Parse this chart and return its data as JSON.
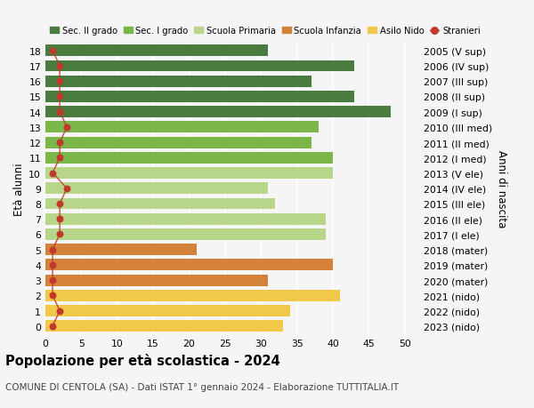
{
  "ages": [
    18,
    17,
    16,
    15,
    14,
    13,
    12,
    11,
    10,
    9,
    8,
    7,
    6,
    5,
    4,
    3,
    2,
    1,
    0
  ],
  "right_labels": [
    "2005 (V sup)",
    "2006 (IV sup)",
    "2007 (III sup)",
    "2008 (II sup)",
    "2009 (I sup)",
    "2010 (III med)",
    "2011 (II med)",
    "2012 (I med)",
    "2013 (V ele)",
    "2014 (IV ele)",
    "2015 (III ele)",
    "2016 (II ele)",
    "2017 (I ele)",
    "2018 (mater)",
    "2019 (mater)",
    "2020 (mater)",
    "2021 (nido)",
    "2022 (nido)",
    "2023 (nido)"
  ],
  "bar_values": [
    31,
    43,
    37,
    43,
    48,
    38,
    37,
    40,
    40,
    31,
    32,
    39,
    39,
    21,
    40,
    31,
    41,
    34,
    33
  ],
  "bar_colors": [
    "#4a7c3f",
    "#4a7c3f",
    "#4a7c3f",
    "#4a7c3f",
    "#4a7c3f",
    "#7ab648",
    "#7ab648",
    "#7ab648",
    "#b8d68a",
    "#b8d68a",
    "#b8d68a",
    "#b8d68a",
    "#b8d68a",
    "#d4813a",
    "#d4813a",
    "#d4813a",
    "#f0c84a",
    "#f0c84a",
    "#f0c84a"
  ],
  "stranieri_values": [
    1,
    2,
    2,
    2,
    2,
    3,
    2,
    2,
    1,
    3,
    2,
    2,
    2,
    1,
    1,
    1,
    1,
    2,
    1
  ],
  "stranieri_color": "#c0392b",
  "legend_items": [
    {
      "label": "Sec. II grado",
      "color": "#4a7c3f"
    },
    {
      "label": "Sec. I grado",
      "color": "#7ab648"
    },
    {
      "label": "Scuola Primaria",
      "color": "#b8d68a"
    },
    {
      "label": "Scuola Infanzia",
      "color": "#d4813a"
    },
    {
      "label": "Asilo Nido",
      "color": "#f0c84a"
    },
    {
      "label": "Stranieri",
      "color": "#c0392b"
    }
  ],
  "ylabel_left": "Età alunni",
  "ylabel_right": "Anni di nascita",
  "title": "Popolazione per età scolastica - 2024",
  "subtitle": "COMUNE DI CENTOLA (SA) - Dati ISTAT 1° gennaio 2024 - Elaborazione TUTTITALIA.IT",
  "xlim": [
    0,
    52
  ],
  "xticks": [
    0,
    5,
    10,
    15,
    20,
    25,
    30,
    35,
    40,
    45,
    50
  ],
  "bg_color": "#f5f5f5",
  "bar_height": 0.75,
  "grid_color": "#ffffff",
  "title_fontsize": 10.5,
  "subtitle_fontsize": 7.5,
  "axis_fontsize": 8.5,
  "tick_fontsize": 7.8,
  "legend_fontsize": 7.2
}
